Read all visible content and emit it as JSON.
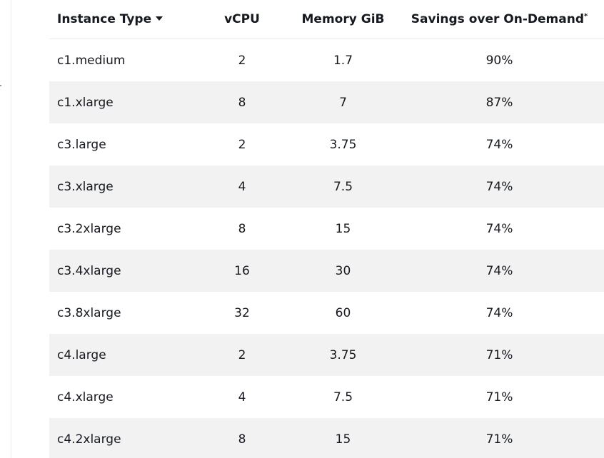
{
  "table": {
    "headers": {
      "instance_type": "Instance Type",
      "vcpu": "vCPU",
      "memory": "Memory GiB",
      "savings": "Savings over On-Demand",
      "savings_footnote": "*"
    },
    "rows": [
      {
        "instance_type": "c1.medium",
        "vcpu": "2",
        "memory": "1.7",
        "savings": "90%"
      },
      {
        "instance_type": "c1.xlarge",
        "vcpu": "8",
        "memory": "7",
        "savings": "87%"
      },
      {
        "instance_type": "c3.large",
        "vcpu": "2",
        "memory": "3.75",
        "savings": "74%"
      },
      {
        "instance_type": "c3.xlarge",
        "vcpu": "4",
        "memory": "7.5",
        "savings": "74%"
      },
      {
        "instance_type": "c3.2xlarge",
        "vcpu": "8",
        "memory": "15",
        "savings": "74%"
      },
      {
        "instance_type": "c3.4xlarge",
        "vcpu": "16",
        "memory": "30",
        "savings": "74%"
      },
      {
        "instance_type": "c3.8xlarge",
        "vcpu": "32",
        "memory": "60",
        "savings": "74%"
      },
      {
        "instance_type": "c4.large",
        "vcpu": "2",
        "memory": "3.75",
        "savings": "71%"
      },
      {
        "instance_type": "c4.xlarge",
        "vcpu": "4",
        "memory": "7.5",
        "savings": "71%"
      },
      {
        "instance_type": "c4.2xlarge",
        "vcpu": "8",
        "memory": "15",
        "savings": "71%"
      }
    ],
    "sort_icon": "caret-down-icon"
  }
}
